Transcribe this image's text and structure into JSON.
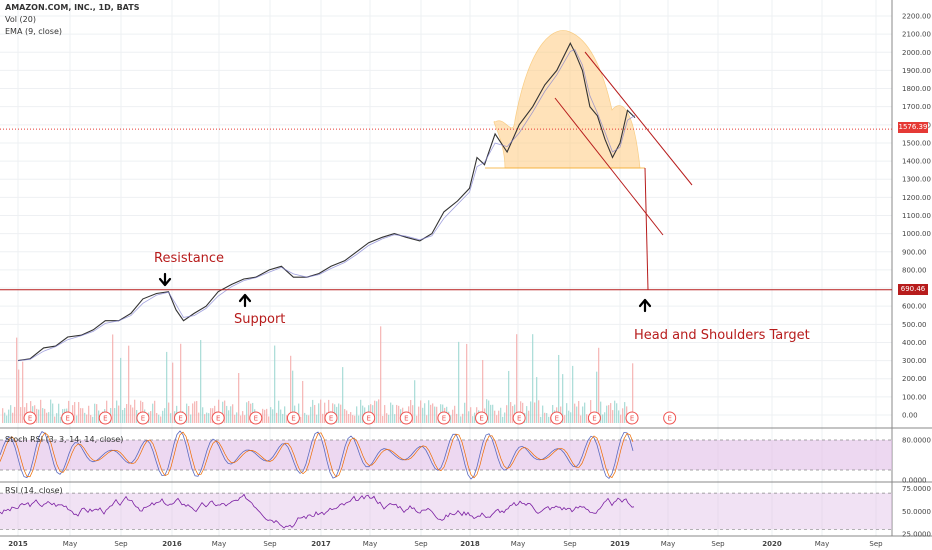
{
  "chart_data": {
    "type": "line",
    "title": "AMAZON.COM, INC., 1D, BATS",
    "indicators": [
      "Vol (20)",
      "EMA (9, close)"
    ],
    "x_ticks": [
      "2015",
      "May",
      "Sep",
      "2016",
      "May",
      "Sep",
      "2017",
      "May",
      "Sep",
      "2018",
      "May",
      "Sep",
      "2019",
      "May",
      "Sep",
      "2020",
      "May",
      "Sep"
    ],
    "y_ticks": [
      "2200.00",
      "2100.00",
      "2000.00",
      "1900.00",
      "1800.00",
      "1700.00",
      "1600.00",
      "1500.00",
      "1400.00",
      "1300.00",
      "1200.00",
      "1100.00",
      "1000.00",
      "900.00",
      "800.00",
      "700.00",
      "600.00",
      "500.00",
      "400.00",
      "300.00",
      "200.00",
      "100.00",
      "0.00"
    ],
    "ylim": [
      0,
      2220
    ],
    "price_series": {
      "name": "AMZN",
      "points": [
        [
          2015.0,
          300
        ],
        [
          2015.08,
          310
        ],
        [
          2015.17,
          370
        ],
        [
          2015.25,
          380
        ],
        [
          2015.33,
          430
        ],
        [
          2015.42,
          440
        ],
        [
          2015.5,
          470
        ],
        [
          2015.58,
          520
        ],
        [
          2015.67,
          520
        ],
        [
          2015.75,
          560
        ],
        [
          2015.83,
          640
        ],
        [
          2015.92,
          670
        ],
        [
          2016.0,
          680
        ],
        [
          2016.05,
          580
        ],
        [
          2016.1,
          520
        ],
        [
          2016.17,
          560
        ],
        [
          2016.25,
          600
        ],
        [
          2016.33,
          680
        ],
        [
          2016.42,
          720
        ],
        [
          2016.5,
          750
        ],
        [
          2016.58,
          760
        ],
        [
          2016.67,
          800
        ],
        [
          2016.75,
          820
        ],
        [
          2016.83,
          760
        ],
        [
          2016.92,
          760
        ],
        [
          2017.0,
          780
        ],
        [
          2017.08,
          820
        ],
        [
          2017.17,
          850
        ],
        [
          2017.25,
          900
        ],
        [
          2017.33,
          950
        ],
        [
          2017.42,
          980
        ],
        [
          2017.5,
          1000
        ],
        [
          2017.58,
          980
        ],
        [
          2017.67,
          960
        ],
        [
          2017.75,
          1000
        ],
        [
          2017.83,
          1120
        ],
        [
          2017.92,
          1180
        ],
        [
          2018.0,
          1250
        ],
        [
          2018.05,
          1420
        ],
        [
          2018.1,
          1380
        ],
        [
          2018.17,
          1550
        ],
        [
          2018.25,
          1450
        ],
        [
          2018.33,
          1600
        ],
        [
          2018.42,
          1700
        ],
        [
          2018.5,
          1820
        ],
        [
          2018.58,
          1900
        ],
        [
          2018.67,
          2050
        ],
        [
          2018.7,
          2000
        ],
        [
          2018.75,
          1900
        ],
        [
          2018.8,
          1700
        ],
        [
          2018.85,
          1650
        ],
        [
          2018.9,
          1520
        ],
        [
          2018.95,
          1420
        ],
        [
          2019.0,
          1500
        ],
        [
          2019.05,
          1680
        ],
        [
          2019.1,
          1640
        ]
      ]
    },
    "horizontal_levels": [
      {
        "name": "current",
        "value": 1576.39,
        "label": "1576.39",
        "color": "#e53935"
      },
      {
        "name": "target",
        "value": 690.46,
        "label": "690.46",
        "color": "#b71c1c"
      }
    ],
    "earnings_markers": [
      2015.08,
      2015.33,
      2015.58,
      2015.83,
      2016.08,
      2016.33,
      2016.58,
      2016.83,
      2017.08,
      2017.33,
      2017.58,
      2017.83,
      2018.08,
      2018.33,
      2018.58,
      2018.83,
      2019.08,
      2019.33
    ],
    "earnings_label": "E",
    "annotations": {
      "resistance": "Resistance",
      "support": "Support",
      "target": "Head and Shoulders Target"
    },
    "stoch_rsi": {
      "title": "Stoch RSI (3, 3, 14, 14, close)",
      "ticks": [
        "80.0000",
        "0.0000"
      ],
      "levels": [
        80,
        20
      ],
      "ylim": [
        0,
        100
      ]
    },
    "rsi": {
      "title": "RSI (14, close)",
      "ticks": [
        "75.0000",
        "50.0000",
        "25.0000"
      ],
      "levels": [
        70,
        30
      ],
      "ylim": [
        25,
        80
      ]
    },
    "colors": {
      "up": "#26a69a",
      "down": "#ef5350",
      "target_line": "#b71c1c",
      "pattern_fill": "#ffcc80",
      "stoch_band": "#e1bee7",
      "rsi_line": "#7b1fa2"
    },
    "grid": true
  }
}
